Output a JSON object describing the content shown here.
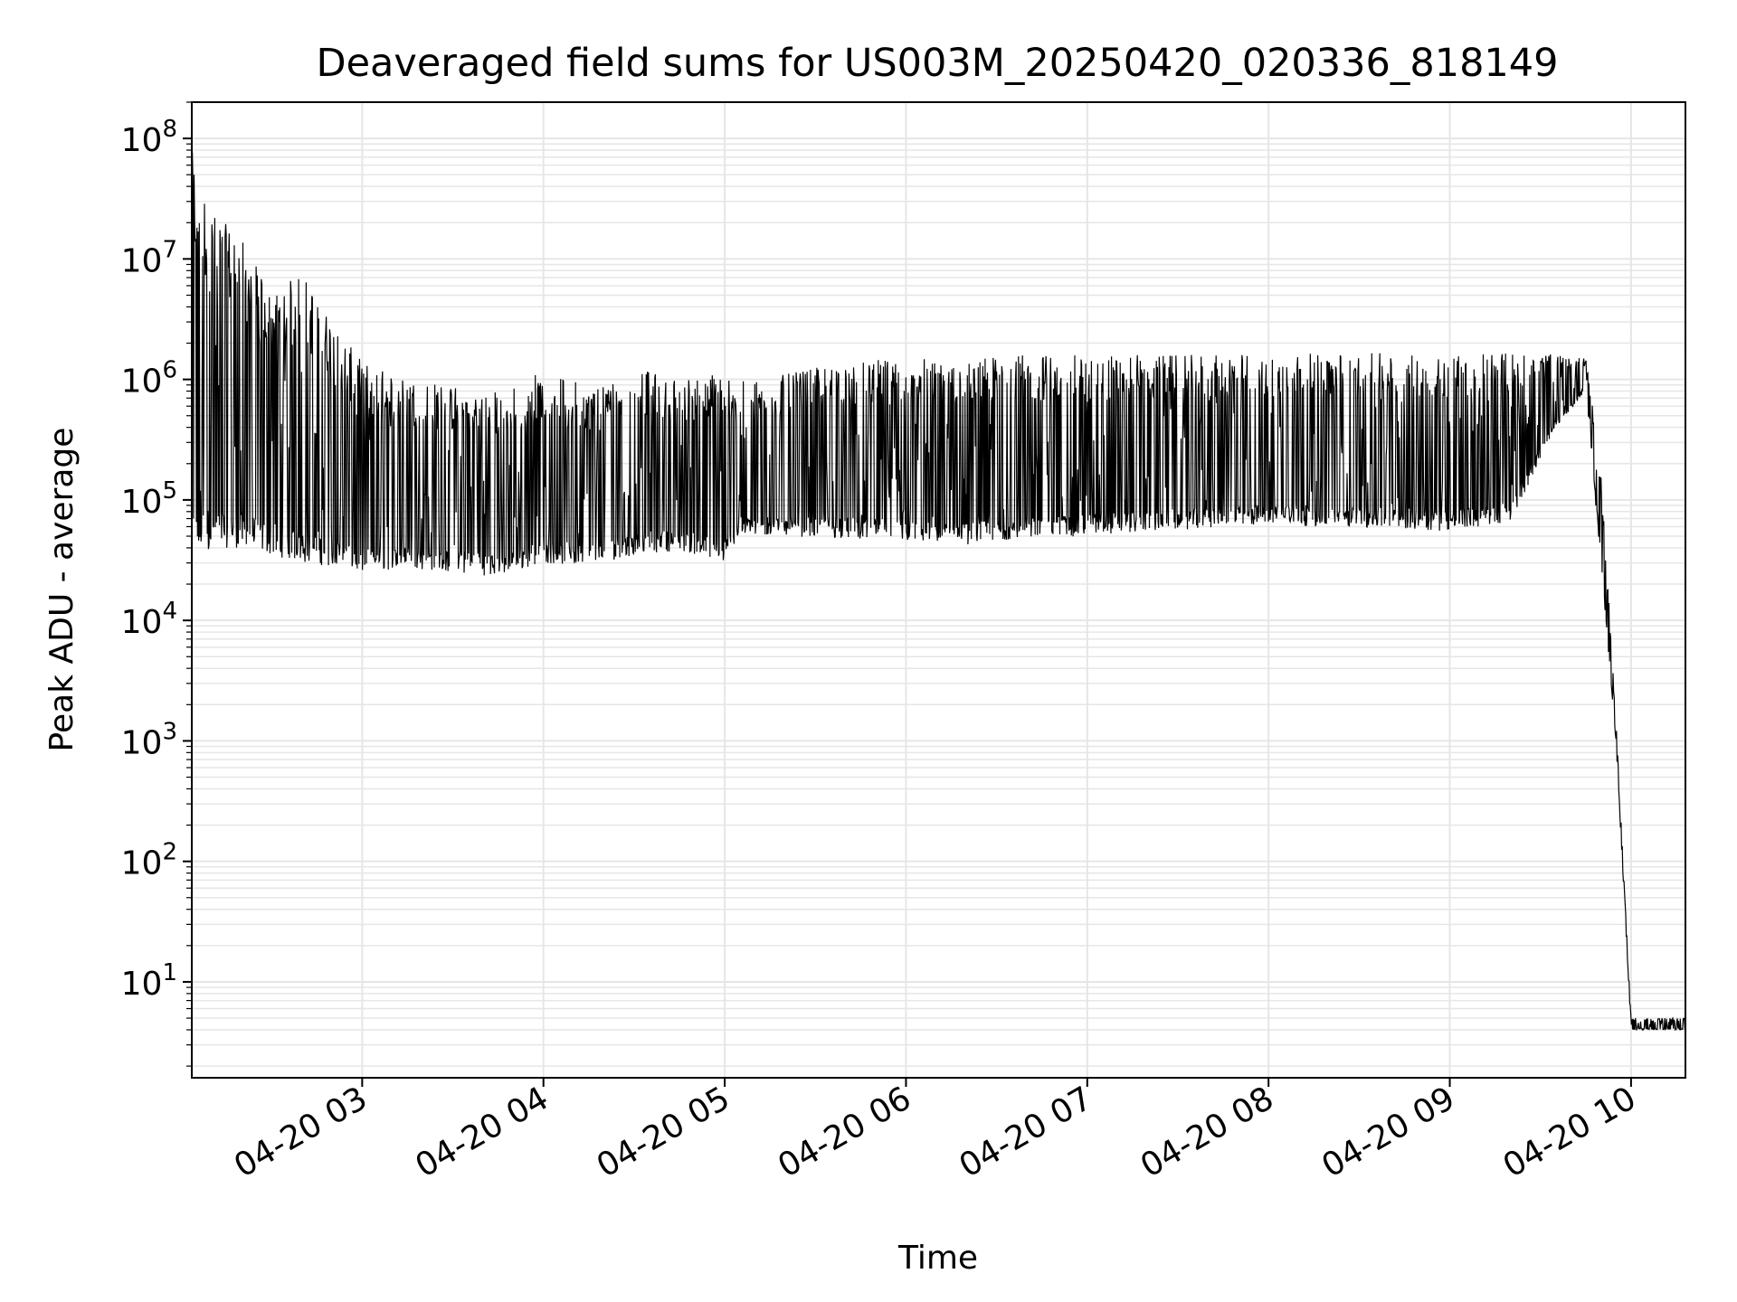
{
  "chart_data": {
    "type": "line",
    "title": "Deaveraged field sums for US003M_20250420_020336_818149",
    "xlabel": "Time",
    "ylabel": "Peak ADU - average",
    "y_scale": "log",
    "ylim": [
      1.6,
      200000000
    ],
    "xlim": [
      "2025-04-20 02:03:36",
      "2025-04-20 10:18:00"
    ],
    "grid": true,
    "line_color": "#000000",
    "grid_color": "#e6e6e6",
    "x_ticks": [
      {
        "time": "2025-04-20 03:00",
        "label": "04-20 03"
      },
      {
        "time": "2025-04-20 04:00",
        "label": "04-20 04"
      },
      {
        "time": "2025-04-20 05:00",
        "label": "04-20 05"
      },
      {
        "time": "2025-04-20 06:00",
        "label": "04-20 06"
      },
      {
        "time": "2025-04-20 07:00",
        "label": "04-20 07"
      },
      {
        "time": "2025-04-20 08:00",
        "label": "04-20 08"
      },
      {
        "time": "2025-04-20 09:00",
        "label": "04-20 09"
      },
      {
        "time": "2025-04-20 10:00",
        "label": "04-20 10"
      }
    ],
    "y_ticks": [
      {
        "value": 10,
        "base": "10",
        "exp": "1"
      },
      {
        "value": 100,
        "base": "10",
        "exp": "2"
      },
      {
        "value": 1000,
        "base": "10",
        "exp": "3"
      },
      {
        "value": 10000,
        "base": "10",
        "exp": "4"
      },
      {
        "value": 100000,
        "base": "10",
        "exp": "5"
      },
      {
        "value": 1000000,
        "base": "10",
        "exp": "6"
      },
      {
        "value": 10000000,
        "base": "10",
        "exp": "7"
      },
      {
        "value": 100000000,
        "base": "10",
        "exp": "8"
      }
    ],
    "series": [
      {
        "x": [
          "2025-04-20 02:03:36",
          "2025-04-20 02:10",
          "2025-04-20 02:20",
          "2025-04-20 02:30",
          "2025-04-20 02:40",
          "2025-04-20 02:50",
          "2025-04-20 03:00",
          "2025-04-20 03:15",
          "2025-04-20 03:30",
          "2025-04-20 03:45",
          "2025-04-20 04:00",
          "2025-04-20 04:15",
          "2025-04-20 04:30",
          "2025-04-20 04:45",
          "2025-04-20 05:00",
          "2025-04-20 05:05",
          "2025-04-20 05:20",
          "2025-04-20 05:40",
          "2025-04-20 06:00",
          "2025-04-20 06:20",
          "2025-04-20 06:40",
          "2025-04-20 07:00",
          "2025-04-20 07:20",
          "2025-04-20 07:40",
          "2025-04-20 08:00",
          "2025-04-20 08:20",
          "2025-04-20 08:40",
          "2025-04-20 09:00",
          "2025-04-20 09:20",
          "2025-04-20 09:35",
          "2025-04-20 09:45",
          "2025-04-20 09:50",
          "2025-04-20 09:55",
          "2025-04-20 10:00",
          "2025-04-20 10:18"
        ],
        "low": [
          30000,
          40000,
          40000,
          35000,
          30000,
          28000,
          25000,
          27000,
          25000,
          23000,
          30000,
          28000,
          35000,
          38000,
          30000,
          50000,
          50000,
          48000,
          45000,
          42000,
          48000,
          50000,
          55000,
          58000,
          62000,
          60000,
          58000,
          55000,
          65000,
          400000,
          800000,
          30000,
          1000,
          4,
          4
        ],
        "high": [
          80000000,
          25000000,
          15000000,
          5000000,
          8000000,
          3000000,
          1400000,
          1000000,
          900000,
          800000,
          1200000,
          900000,
          1300000,
          1000000,
          1200000,
          1000000,
          1100000,
          1400000,
          1500000,
          1500000,
          1600000,
          1600000,
          1600000,
          1600000,
          1650000,
          1650000,
          1650000,
          1650000,
          1700000,
          1600000,
          1500000,
          200000,
          1500,
          5,
          5
        ]
      }
    ]
  }
}
